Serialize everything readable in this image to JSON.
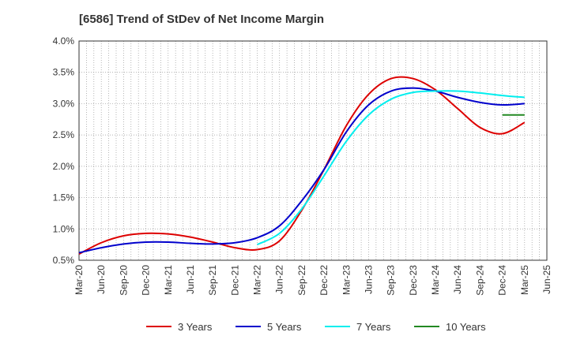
{
  "chart_data": {
    "type": "line",
    "title": "[6586]  Trend of StDev of Net Income Margin",
    "xlabel": "",
    "ylabel": "",
    "x_ticks": [
      "Mar-20",
      "Jun-20",
      "Sep-20",
      "Dec-20",
      "Mar-21",
      "Jun-21",
      "Sep-21",
      "Dec-21",
      "Mar-22",
      "Jun-22",
      "Sep-22",
      "Dec-22",
      "Mar-23",
      "Jun-23",
      "Sep-23",
      "Dec-23",
      "Mar-24",
      "Jun-24",
      "Sep-24",
      "Dec-24",
      "Mar-25",
      "Jun-25"
    ],
    "y_ticks": [
      "0.5%",
      "1.0%",
      "1.5%",
      "2.0%",
      "2.5%",
      "3.0%",
      "3.5%",
      "4.0%"
    ],
    "ylim": [
      0.5,
      4.0
    ],
    "grid": true,
    "legend_position": "bottom",
    "series": [
      {
        "name": "3 Years",
        "color": "#dd0000",
        "points": [
          [
            "Mar-20",
            0.6
          ],
          [
            "Jun-20",
            0.78
          ],
          [
            "Sep-20",
            0.89
          ],
          [
            "Dec-20",
            0.93
          ],
          [
            "Mar-21",
            0.92
          ],
          [
            "Jun-21",
            0.87
          ],
          [
            "Sep-21",
            0.79
          ],
          [
            "Dec-21",
            0.7
          ],
          [
            "Mar-22",
            0.67
          ],
          [
            "Jun-22",
            0.81
          ],
          [
            "Sep-22",
            1.3
          ],
          [
            "Dec-22",
            1.95
          ],
          [
            "Mar-23",
            2.65
          ],
          [
            "Jun-23",
            3.15
          ],
          [
            "Sep-23",
            3.4
          ],
          [
            "Dec-23",
            3.4
          ],
          [
            "Mar-24",
            3.22
          ],
          [
            "Jun-24",
            2.92
          ],
          [
            "Sep-24",
            2.62
          ],
          [
            "Dec-24",
            2.52
          ],
          [
            "Mar-25",
            2.7
          ]
        ]
      },
      {
        "name": "5 Years",
        "color": "#0000cc",
        "points": [
          [
            "Mar-20",
            0.62
          ],
          [
            "Jun-20",
            0.7
          ],
          [
            "Sep-20",
            0.76
          ],
          [
            "Dec-20",
            0.79
          ],
          [
            "Mar-21",
            0.79
          ],
          [
            "Jun-21",
            0.77
          ],
          [
            "Sep-21",
            0.76
          ],
          [
            "Dec-21",
            0.78
          ],
          [
            "Mar-22",
            0.86
          ],
          [
            "Jun-22",
            1.05
          ],
          [
            "Sep-22",
            1.45
          ],
          [
            "Dec-22",
            1.95
          ],
          [
            "Mar-23",
            2.55
          ],
          [
            "Jun-23",
            2.98
          ],
          [
            "Sep-23",
            3.2
          ],
          [
            "Dec-23",
            3.25
          ],
          [
            "Mar-24",
            3.2
          ],
          [
            "Jun-24",
            3.1
          ],
          [
            "Sep-24",
            3.02
          ],
          [
            "Dec-24",
            2.98
          ],
          [
            "Mar-25",
            3.0
          ]
        ]
      },
      {
        "name": "7 Years",
        "color": "#00eeee",
        "points": [
          [
            "Mar-22",
            0.75
          ],
          [
            "Jun-22",
            0.93
          ],
          [
            "Sep-22",
            1.32
          ],
          [
            "Dec-22",
            1.85
          ],
          [
            "Mar-23",
            2.4
          ],
          [
            "Jun-23",
            2.82
          ],
          [
            "Sep-23",
            3.07
          ],
          [
            "Dec-23",
            3.18
          ],
          [
            "Mar-24",
            3.2
          ],
          [
            "Jun-24",
            3.2
          ],
          [
            "Sep-24",
            3.17
          ],
          [
            "Dec-24",
            3.13
          ],
          [
            "Mar-25",
            3.1
          ]
        ]
      },
      {
        "name": "10 Years",
        "color": "#228822",
        "points": [
          [
            "Dec-24",
            2.82
          ],
          [
            "Mar-25",
            2.82
          ]
        ]
      }
    ]
  }
}
